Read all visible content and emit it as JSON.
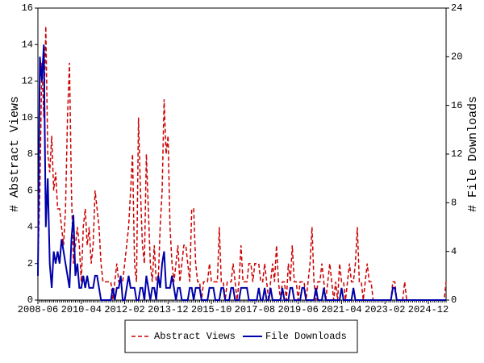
{
  "chart_data": {
    "type": "line",
    "categories": [
      "2008-06",
      null,
      null,
      null,
      null,
      null,
      null,
      null,
      null,
      null,
      null,
      null,
      null,
      null,
      null,
      null,
      null,
      null,
      null,
      null,
      null,
      null,
      "2010-04",
      null,
      null,
      null,
      null,
      null,
      null,
      null,
      null,
      null,
      null,
      null,
      null,
      null,
      null,
      null,
      null,
      null,
      null,
      null,
      null,
      null,
      "2012-02",
      null,
      null,
      null,
      null,
      null,
      null,
      null,
      null,
      null,
      null,
      null,
      null,
      null,
      null,
      null,
      null,
      null,
      null,
      null,
      null,
      null,
      "2013-12",
      null,
      null,
      null,
      null,
      null,
      null,
      null,
      null,
      null,
      null,
      null,
      null,
      null,
      null,
      null,
      null,
      null,
      null,
      null,
      null,
      null,
      "2015-10",
      null,
      null,
      null,
      null,
      null,
      null,
      null,
      null,
      null,
      null,
      null,
      null,
      null,
      null,
      null,
      null,
      null,
      null,
      null,
      null,
      null,
      "2017-08",
      null,
      null,
      null,
      null,
      null,
      null,
      null,
      null,
      null,
      null,
      null,
      null,
      null,
      null,
      null,
      null,
      null,
      null,
      null,
      null,
      null,
      "2019-06",
      null,
      null,
      null,
      null,
      null,
      null,
      null,
      null,
      null,
      null,
      null,
      null,
      null,
      null,
      null,
      null,
      null,
      null,
      null,
      null,
      null,
      "2021-04",
      null,
      null,
      null,
      null,
      null,
      null,
      null,
      null,
      null,
      null,
      null,
      null,
      null,
      null,
      null,
      null,
      null,
      null,
      null,
      null,
      null,
      "2023-02",
      null,
      null,
      null,
      null,
      null,
      null,
      null,
      null,
      null,
      null,
      null,
      null,
      null,
      null,
      null,
      null,
      null,
      null,
      null,
      null,
      null,
      "2024-12",
      null,
      null,
      null,
      null,
      null,
      null,
      null,
      null,
      null
    ],
    "ylabel": "# Abstract Views",
    "y2label": "# File Downloads",
    "ylim": [
      0,
      16
    ],
    "yticks": [
      0,
      2,
      4,
      6,
      8,
      10,
      12,
      14,
      16
    ],
    "y2lim": [
      0,
      24
    ],
    "y2ticks": [
      0,
      4,
      8,
      12,
      16,
      20,
      24
    ],
    "series": [
      {
        "name": "Abstract Views",
        "color": "#cc0000",
        "dashed": true,
        "values": [
          2,
          6,
          13,
          10,
          15,
          8,
          7,
          9,
          6,
          7,
          5,
          5,
          4,
          3,
          5,
          10,
          13,
          6,
          2,
          3,
          4,
          3,
          1,
          4,
          5,
          3,
          4,
          2,
          3,
          6,
          5,
          4,
          2,
          1,
          1,
          1,
          1,
          1,
          0,
          1,
          2,
          1,
          1,
          1,
          2,
          3,
          4,
          6,
          8,
          2,
          1,
          10,
          6,
          3,
          2,
          8,
          5,
          2,
          1,
          3,
          1,
          1,
          4,
          6,
          11,
          8,
          9,
          4,
          2,
          1,
          2,
          3,
          1,
          2,
          3,
          3,
          2,
          1,
          5,
          5,
          2,
          1,
          1,
          0,
          1,
          1,
          1,
          2,
          1,
          1,
          1,
          1,
          4,
          1,
          1,
          0,
          1,
          1,
          1,
          2,
          1,
          0,
          1,
          3,
          1,
          1,
          1,
          2,
          2,
          1,
          2,
          2,
          2,
          1,
          1,
          2,
          1,
          0,
          1,
          2,
          1,
          3,
          1,
          0,
          1,
          1,
          0,
          2,
          1,
          3,
          1,
          1,
          0,
          1,
          1,
          1,
          0,
          1,
          2,
          4,
          1,
          0,
          1,
          1,
          2,
          1,
          0,
          1,
          2,
          1,
          0,
          1,
          0,
          2,
          1,
          1,
          0,
          1,
          2,
          1,
          1,
          2,
          4,
          1,
          1,
          0,
          1,
          2,
          1,
          1,
          0,
          0,
          0,
          0,
          0,
          0,
          0,
          0,
          0,
          0,
          1,
          1,
          0,
          0,
          0,
          0,
          1,
          0,
          0,
          0,
          0,
          0,
          0,
          0,
          0,
          0,
          0,
          0,
          0,
          0,
          0,
          0,
          0,
          0,
          0,
          0,
          0,
          1
        ]
      },
      {
        "name": "File Downloads",
        "color": "#0000aa",
        "dashed": false,
        "axis": "y2",
        "values": [
          2,
          20,
          18,
          21,
          6,
          10,
          3,
          1,
          4,
          3,
          4,
          3,
          5,
          4,
          3,
          2,
          1,
          5,
          7,
          2,
          3,
          1,
          1,
          2,
          1,
          2,
          1,
          1,
          1,
          2,
          2,
          1,
          0,
          0,
          0,
          0,
          0,
          0,
          1,
          0,
          1,
          1,
          2,
          0,
          0,
          1,
          2,
          1,
          1,
          1,
          0,
          0,
          1,
          1,
          0,
          2,
          1,
          0,
          1,
          1,
          0,
          2,
          1,
          3,
          4,
          1,
          1,
          1,
          2,
          1,
          0,
          1,
          1,
          0,
          0,
          0,
          0,
          1,
          1,
          0,
          1,
          1,
          1,
          0,
          0,
          0,
          0,
          1,
          1,
          1,
          0,
          0,
          0,
          1,
          1,
          0,
          0,
          0,
          1,
          1,
          0,
          0,
          0,
          1,
          1,
          1,
          1,
          0,
          0,
          0,
          0,
          0,
          1,
          0,
          0,
          1,
          0,
          0,
          1,
          0,
          0,
          0,
          0,
          0,
          1,
          0,
          0,
          0,
          1,
          1,
          0,
          0,
          0,
          0,
          1,
          1,
          0,
          0,
          0,
          0,
          0,
          1,
          0,
          0,
          0,
          1,
          0,
          0,
          0,
          0,
          0,
          0,
          0,
          0,
          1,
          0,
          0,
          0,
          0,
          0,
          1,
          0,
          0,
          0,
          0,
          0,
          0,
          0,
          0,
          0,
          0,
          0,
          0,
          0,
          0,
          0,
          0,
          0,
          0,
          0,
          1,
          1,
          0,
          0,
          0,
          0,
          0,
          0,
          0,
          0,
          0,
          0,
          0,
          0,
          0,
          0,
          0,
          0,
          0,
          0,
          0,
          0,
          0,
          0,
          0,
          0,
          0,
          0
        ]
      }
    ]
  }
}
